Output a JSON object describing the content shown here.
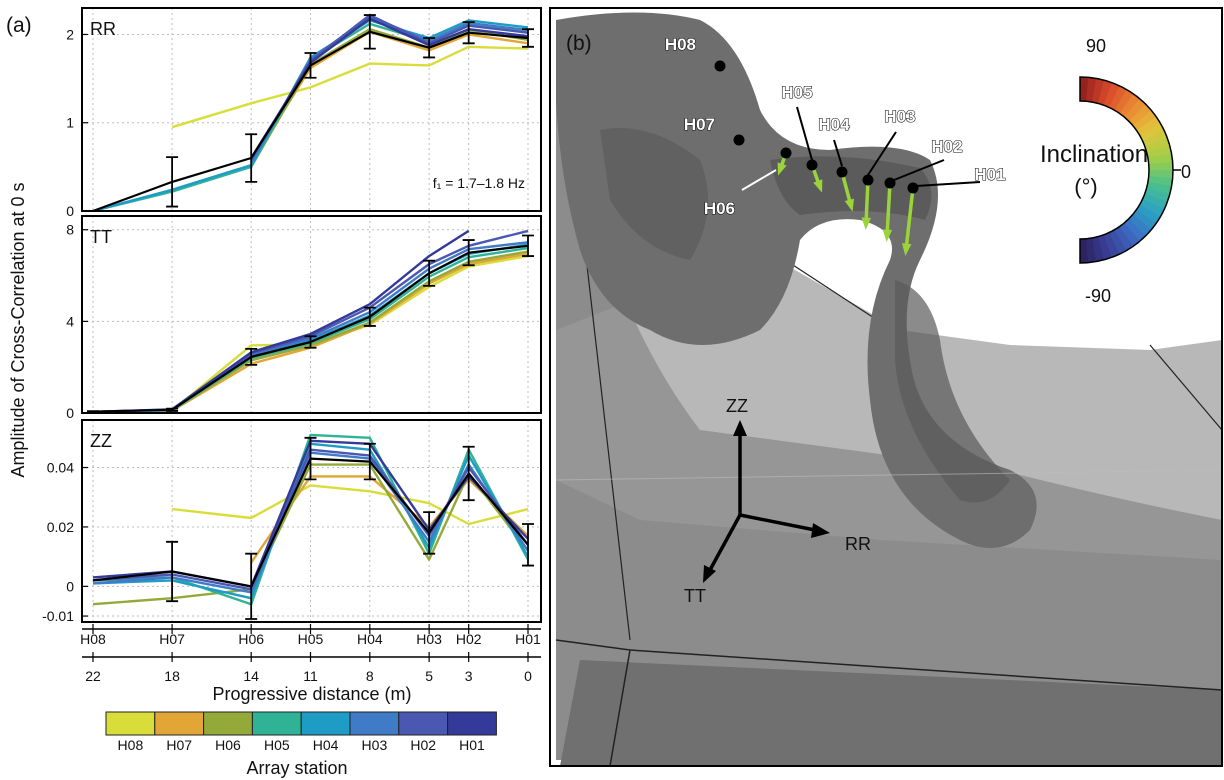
{
  "figure": {
    "panel_a_label": "(a)",
    "panel_b_label": "(b)",
    "ylabel": "Amplitude of Cross-Correlation at 0 s",
    "xlabel": "Progressive distance (m)",
    "legend_title": "Array station",
    "freq_note": "f₁ = 1.7–1.8 Hz"
  },
  "colors": {
    "H08": "#d9dd3a",
    "H07": "#e2a636",
    "H06": "#93aa3a",
    "H05": "#2fb296",
    "H04": "#1f9cc6",
    "H03": "#3f7bc7",
    "H02": "#4b58b2",
    "H01": "#333a9a",
    "mean": "#000000",
    "arch": "#8a8a8a",
    "arrow": "#9ad43a"
  },
  "chart_data": [
    {
      "type": "line",
      "panel": "RR",
      "title": "RR",
      "x": [
        22,
        18,
        14,
        11,
        8,
        5,
        3,
        0
      ],
      "x_station_labels": [
        "H08",
        "H07",
        "H06",
        "H05",
        "H04",
        "H03",
        "H02",
        "H01"
      ],
      "xlim": [
        0,
        22
      ],
      "x_reversed": true,
      "ylim": [
        0,
        2.3
      ],
      "yticks": [
        0,
        1,
        2
      ],
      "grid": true,
      "series": [
        {
          "name": "H08",
          "values": [
            null,
            0.95,
            1.22,
            1.4,
            1.67,
            1.65,
            1.86,
            1.84
          ]
        },
        {
          "name": "H07",
          "values": [
            null,
            null,
            0.55,
            1.62,
            2.03,
            1.82,
            2.0,
            1.9
          ]
        },
        {
          "name": "H06",
          "values": [
            null,
            null,
            0.5,
            1.66,
            2.06,
            1.85,
            2.05,
            1.94
          ]
        },
        {
          "name": "H05",
          "values": [
            0.0,
            0.22,
            0.5,
            1.72,
            2.12,
            1.92,
            2.12,
            2.02
          ]
        },
        {
          "name": "H04",
          "values": [
            0.0,
            0.24,
            0.52,
            1.74,
            2.16,
            1.96,
            2.16,
            2.08
          ]
        },
        {
          "name": "H03",
          "values": [
            null,
            null,
            0.55,
            1.72,
            2.2,
            1.93,
            2.13,
            2.05
          ]
        },
        {
          "name": "H02",
          "values": [
            null,
            null,
            0.58,
            1.7,
            2.22,
            1.9,
            2.1,
            2.02
          ]
        },
        {
          "name": "H01",
          "values": [
            null,
            null,
            0.6,
            1.68,
            2.18,
            1.88,
            2.06,
            1.98
          ]
        },
        {
          "name": "mean",
          "values": [
            0.0,
            0.33,
            0.6,
            1.65,
            2.03,
            1.85,
            2.02,
            1.96
          ],
          "err": [
            0,
            0.28,
            0.27,
            0.14,
            0.19,
            0.11,
            0.12,
            0.1
          ]
        }
      ]
    },
    {
      "type": "line",
      "panel": "TT",
      "title": "TT",
      "x": [
        22,
        18,
        14,
        11,
        8,
        5,
        3,
        0
      ],
      "x_station_labels": [
        "H08",
        "H07",
        "H06",
        "H05",
        "H04",
        "H03",
        "H02",
        "H01"
      ],
      "xlim": [
        0,
        22
      ],
      "x_reversed": true,
      "ylim": [
        0,
        8.6
      ],
      "yticks": [
        0,
        4,
        8
      ],
      "grid": true,
      "series": [
        {
          "name": "H08",
          "values": [
            0.05,
            0.1,
            2.95,
            3.0,
            3.85,
            5.5,
            6.4,
            6.85
          ]
        },
        {
          "name": "H07",
          "values": [
            0.05,
            0.1,
            2.15,
            2.85,
            3.9,
            5.65,
            6.5,
            6.95
          ]
        },
        {
          "name": "H06",
          "values": [
            0.05,
            0.12,
            2.3,
            2.95,
            3.95,
            5.75,
            6.6,
            7.05
          ]
        },
        {
          "name": "H05",
          "values": [
            0.05,
            0.12,
            2.4,
            3.05,
            4.1,
            5.95,
            6.8,
            7.2
          ]
        },
        {
          "name": "H04",
          "values": [
            0.05,
            0.13,
            2.5,
            3.15,
            4.25,
            6.1,
            6.95,
            7.35
          ]
        },
        {
          "name": "H03",
          "values": [
            0.05,
            0.14,
            2.55,
            3.25,
            4.4,
            6.3,
            7.15,
            7.45
          ]
        },
        {
          "name": "H02",
          "values": [
            0.05,
            0.15,
            2.6,
            3.35,
            4.6,
            6.5,
            7.3,
            7.95
          ]
        },
        {
          "name": "H01",
          "values": [
            0.05,
            0.16,
            2.65,
            3.45,
            4.75,
            6.85,
            7.95,
            null
          ]
        },
        {
          "name": "mean",
          "values": [
            0.06,
            0.14,
            2.45,
            3.1,
            4.2,
            6.1,
            7.0,
            7.3
          ],
          "err": [
            0.02,
            0.05,
            0.35,
            0.25,
            0.4,
            0.55,
            0.55,
            0.45
          ]
        }
      ]
    },
    {
      "type": "line",
      "panel": "ZZ",
      "title": "ZZ",
      "x": [
        22,
        18,
        14,
        11,
        8,
        5,
        3,
        0
      ],
      "x_station_labels": [
        "H08",
        "H07",
        "H06",
        "H05",
        "H04",
        "H03",
        "H02",
        "H01"
      ],
      "xlim": [
        0,
        22
      ],
      "x_reversed": true,
      "ylim": [
        -0.012,
        0.056
      ],
      "yticks": [
        -0.01,
        0,
        0.02,
        0.04
      ],
      "grid": true,
      "series": [
        {
          "name": "H08",
          "values": [
            null,
            0.026,
            0.023,
            0.034,
            0.032,
            0.028,
            0.021,
            0.026
          ]
        },
        {
          "name": "H07",
          "values": [
            null,
            null,
            0.008,
            0.037,
            0.037,
            0.02,
            0.036,
            0.017
          ]
        },
        {
          "name": "H06",
          "values": [
            -0.006,
            -0.004,
            -0.001,
            0.041,
            0.041,
            0.009,
            0.038,
            0.012
          ]
        },
        {
          "name": "H05",
          "values": [
            0.002,
            0.003,
            -0.006,
            0.051,
            0.05,
            0.011,
            0.046,
            0.009
          ]
        },
        {
          "name": "H04",
          "values": [
            0.001,
            0.002,
            -0.004,
            0.048,
            0.046,
            0.013,
            0.044,
            0.01
          ]
        },
        {
          "name": "H03",
          "values": [
            0.001,
            0.003,
            -0.002,
            0.045,
            0.043,
            0.015,
            0.041,
            0.012
          ]
        },
        {
          "name": "H02",
          "values": [
            0.002,
            0.004,
            -0.001,
            0.046,
            0.044,
            0.017,
            0.04,
            0.014
          ]
        },
        {
          "name": "H01",
          "values": [
            0.003,
            0.005,
            0.0,
            0.049,
            0.048,
            0.019,
            0.037,
            0.016
          ]
        },
        {
          "name": "mean",
          "values": [
            0.002,
            0.005,
            0.0,
            0.043,
            0.042,
            0.018,
            0.038,
            0.014
          ],
          "err": [
            0,
            0.01,
            0.011,
            0.007,
            0.006,
            0.007,
            0.009,
            0.007
          ]
        }
      ]
    },
    {
      "type": "other",
      "panel": "3D arch model",
      "stations": [
        "H08",
        "H07",
        "H06",
        "H05",
        "H04",
        "H03",
        "H02",
        "H01"
      ],
      "axes_labels": [
        "ZZ",
        "RR",
        "TT"
      ],
      "colorbar": {
        "title": "Inclination",
        "unit": "(°)",
        "min": -90,
        "max": 90,
        "mid": 0,
        "tick_labels": [
          "90",
          "0",
          "-90"
        ]
      }
    }
  ]
}
